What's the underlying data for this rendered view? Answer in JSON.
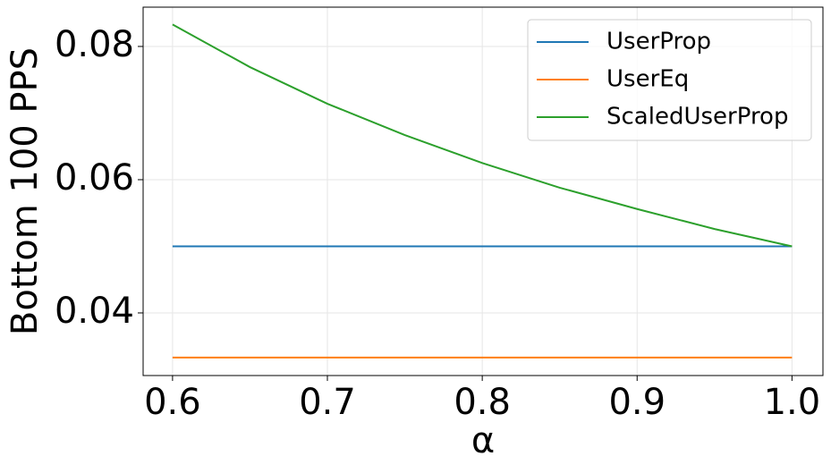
{
  "chart_data": {
    "type": "line",
    "x": [
      0.6,
      0.65,
      0.7,
      0.75,
      0.8,
      0.85,
      0.9,
      0.95,
      1.0
    ],
    "series": [
      {
        "name": "UserProp",
        "color": "#1f77b4",
        "values": [
          0.05,
          0.05,
          0.05,
          0.05,
          0.05,
          0.05,
          0.05,
          0.05,
          0.05
        ]
      },
      {
        "name": "UserEq",
        "color": "#ff7f0e",
        "values": [
          0.0333,
          0.0333,
          0.0333,
          0.0333,
          0.0333,
          0.0333,
          0.0333,
          0.0333,
          0.0333
        ]
      },
      {
        "name": "ScaledUserProp",
        "color": "#2ca02c",
        "values": [
          0.0833,
          0.0769,
          0.0714,
          0.0667,
          0.0625,
          0.0588,
          0.0556,
          0.0526,
          0.05
        ]
      }
    ],
    "xlabel": "α",
    "ylabel": "Bottom 100 PPS",
    "xlim": [
      0.581,
      1.02
    ],
    "ylim": [
      0.0306,
      0.0859
    ],
    "xticks": [
      0.6,
      0.7,
      0.8,
      0.9,
      {
        "value": 1.0,
        "label": "1.0"
      }
    ],
    "yticks": [
      0.04,
      0.06,
      0.08
    ],
    "grid": true,
    "legend": "upper right"
  }
}
